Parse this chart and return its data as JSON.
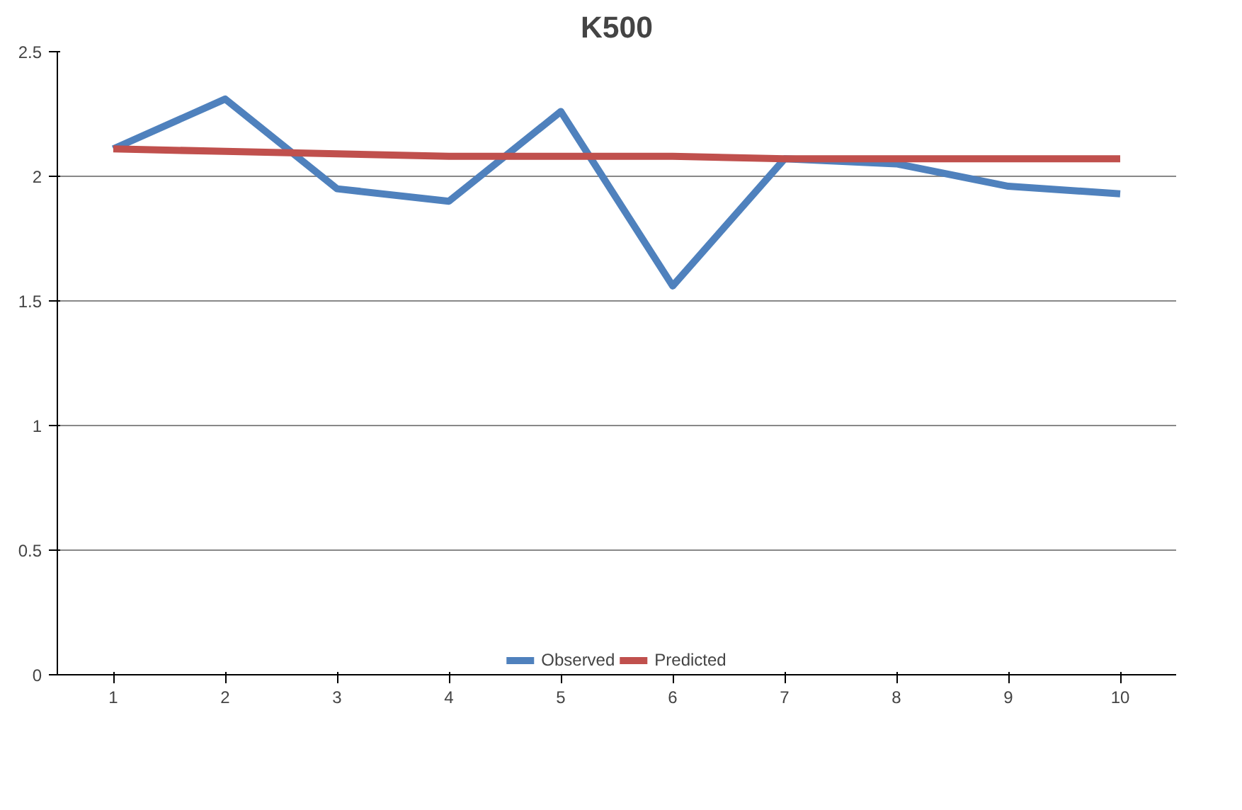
{
  "chart_data": {
    "type": "line",
    "title": "K500",
    "categories": [
      "1",
      "2",
      "3",
      "4",
      "5",
      "6",
      "7",
      "8",
      "9",
      "10"
    ],
    "series": [
      {
        "name": "Observed",
        "color": "#4f81bd",
        "values": [
          2.11,
          2.31,
          1.95,
          1.9,
          2.26,
          1.56,
          2.07,
          2.05,
          1.96,
          1.93
        ]
      },
      {
        "name": "Predicted",
        "color": "#c0504d",
        "values": [
          2.11,
          2.1,
          2.09,
          2.08,
          2.08,
          2.08,
          2.07,
          2.07,
          2.07,
          2.07
        ]
      }
    ],
    "ylim": [
      0,
      2.5
    ],
    "yticks": [
      0,
      0.5,
      1,
      1.5,
      2,
      2.5
    ],
    "grid": "y",
    "legend": "bottom",
    "marker": "none",
    "line_style": "solid"
  }
}
